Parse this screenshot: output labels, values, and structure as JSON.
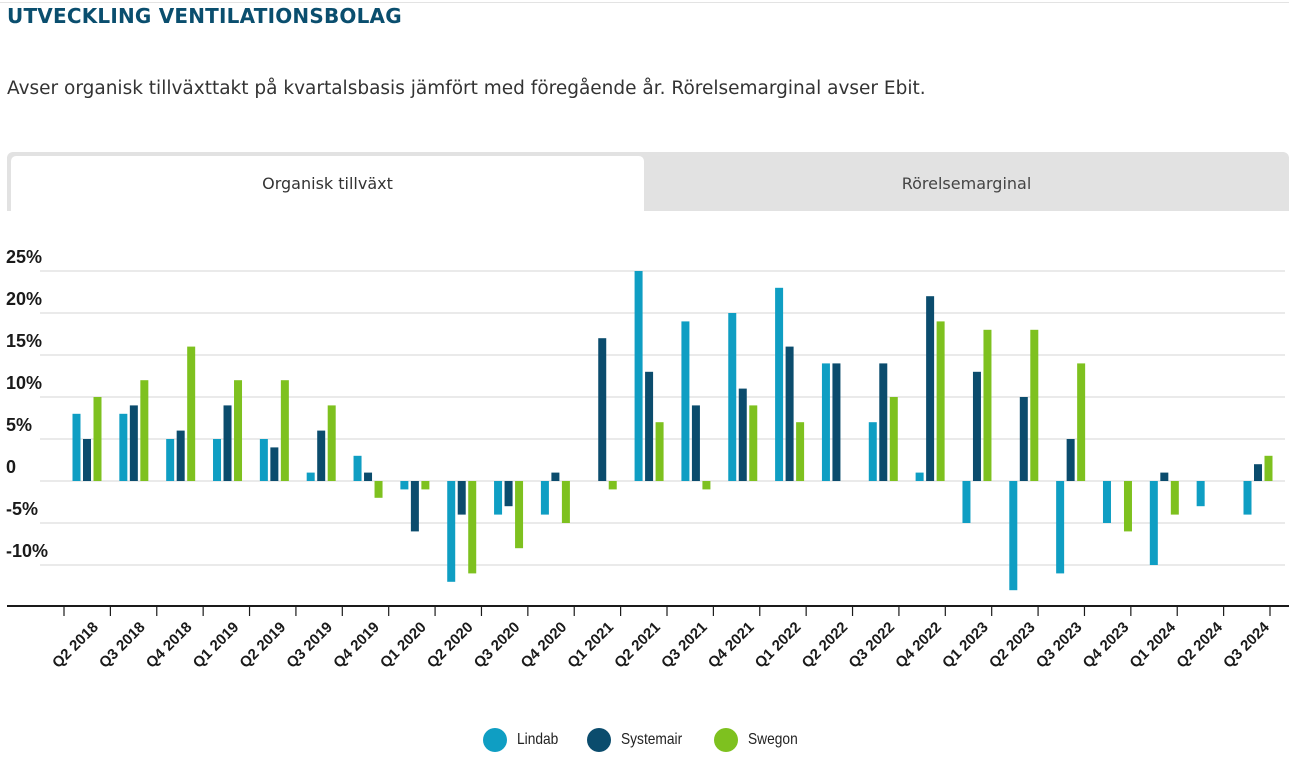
{
  "header": {
    "title": "UTVECKLING VENTILATIONSBOLAG",
    "subtitle": "Avser organisk tillväxttakt på kvartalsbasis jämfört med föregående år. Rörelsemarginal avser Ebit."
  },
  "tabs": [
    {
      "label": "Organisk tillväxt",
      "active": true
    },
    {
      "label": "Rörelsemarginal",
      "active": false
    }
  ],
  "chart_data": {
    "type": "bar",
    "title": "",
    "xlabel": "",
    "ylabel": "",
    "ylim": [
      -15,
      25
    ],
    "grid": true,
    "legend_position": "bottom-center",
    "y_ticks": [
      25,
      20,
      15,
      10,
      5,
      0,
      -5,
      -10
    ],
    "y_tick_labels": [
      "25%",
      "20%",
      "15%",
      "10%",
      "5%",
      "0",
      "-5%",
      "-10%"
    ],
    "categories": [
      "Q2 2018",
      "Q3 2018",
      "Q4 2018",
      "Q1 2019",
      "Q2 2019",
      "Q3 2019",
      "Q4 2019",
      "Q1 2020",
      "Q2 2020",
      "Q3 2020",
      "Q4 2020",
      "Q1 2021",
      "Q2 2021",
      "Q3 2021",
      "Q4 2021",
      "Q1 2022",
      "Q2 2022",
      "Q3 2022",
      "Q4 2022",
      "Q1 2023",
      "Q2 2023",
      "Q3 2023",
      "Q4 2023",
      "Q1 2024",
      "Q2 2024",
      "Q3 2024"
    ],
    "series": [
      {
        "name": "Lindab",
        "color": "#0f9ec3",
        "values": [
          8,
          8,
          5,
          5,
          5,
          1,
          3,
          -1,
          -12,
          -4,
          -4,
          null,
          25,
          19,
          20,
          23,
          14,
          7,
          1,
          -5,
          -13,
          -11,
          -5,
          -10,
          -3,
          -4
        ]
      },
      {
        "name": "Systemair",
        "color": "#0b4c6d",
        "values": [
          5,
          9,
          6,
          9,
          4,
          6,
          1,
          -6,
          -4,
          -3,
          1,
          17,
          13,
          9,
          11,
          16,
          14,
          14,
          22,
          13,
          10,
          5,
          null,
          1,
          null,
          2
        ]
      },
      {
        "name": "Swegon",
        "color": "#7ec11f",
        "values": [
          10,
          12,
          16,
          12,
          12,
          9,
          -2,
          -1,
          -11,
          -8,
          -5,
          -1,
          7,
          -1,
          9,
          7,
          null,
          10,
          19,
          18,
          18,
          14,
          -6,
          -4,
          null,
          3
        ]
      }
    ]
  }
}
